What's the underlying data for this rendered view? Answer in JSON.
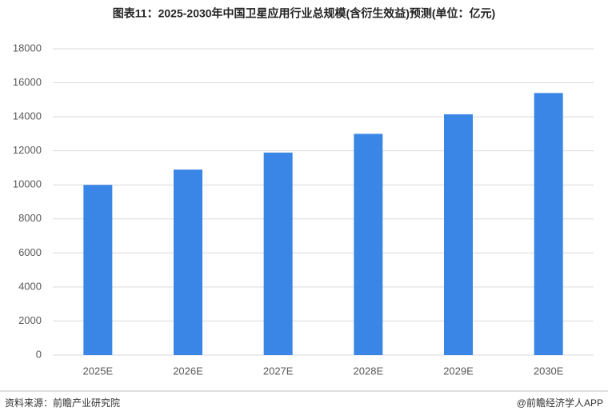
{
  "chart_data": {
    "type": "bar",
    "title": "图表11：2025-2030年中国卫星应用行业总规模(含衍生效益)预测(单位：亿元)",
    "categories": [
      "2025E",
      "2026E",
      "2027E",
      "2028E",
      "2029E",
      "2030E"
    ],
    "values": [
      10000,
      10900,
      11900,
      13000,
      14150,
      15400
    ],
    "color": "#3a86e6",
    "ylim": [
      0,
      18000
    ],
    "yticks": [
      0,
      2000,
      4000,
      6000,
      8000,
      10000,
      12000,
      14000,
      16000,
      18000
    ],
    "grid": true
  },
  "footer": {
    "source": "资料来源：前瞻产业研究院",
    "brand": "@前瞻经济学人APP"
  }
}
